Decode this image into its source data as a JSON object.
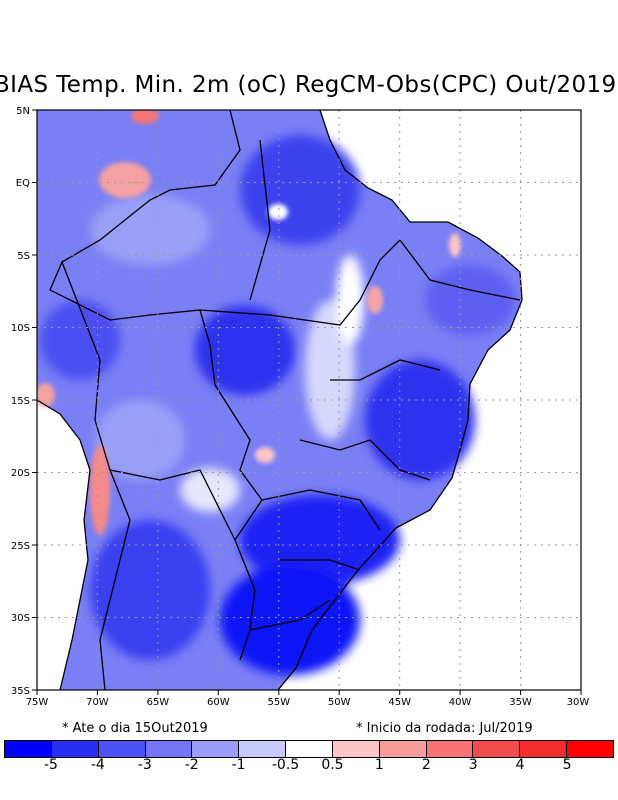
{
  "title": "BIAS Temp. Min. 2m (oC) RegCM-Obs(CPC) Out/2019",
  "footer": {
    "left_note": "* Ate o dia 15Out2019",
    "right_note": "* Inicio da rodada: Jul/2019"
  },
  "map": {
    "lat_labels": [
      "5N",
      "EQ",
      "5S",
      "10S",
      "15S",
      "20S",
      "25S",
      "30S",
      "35S"
    ],
    "lon_labels": [
      "75W",
      "70W",
      "65W",
      "60W",
      "55W",
      "50W",
      "45W",
      "40W",
      "35W",
      "30W"
    ],
    "grid": true
  },
  "colorbar": {
    "colors": [
      "#0000ff",
      "#2a2ef0",
      "#4d52f5",
      "#7377f6",
      "#9a9ef9",
      "#c8caf9",
      "#ffffff",
      "#fcc6c6",
      "#f99c9c",
      "#f77474",
      "#f34c4c",
      "#f42c2c",
      "#ff0000"
    ],
    "labels": [
      "-5",
      "-4",
      "-3",
      "-2",
      "-1",
      "-0.5",
      "0.5",
      "1",
      "2",
      "3",
      "4",
      "5"
    ]
  }
}
